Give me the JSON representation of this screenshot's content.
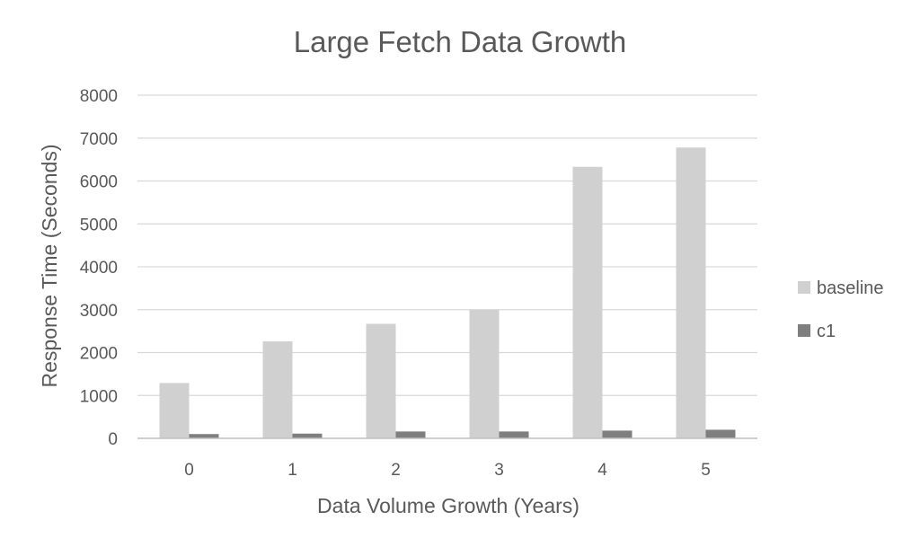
{
  "chart_data": {
    "type": "bar",
    "title": "Large Fetch Data Growth",
    "xlabel": "Data Volume Growth (Years)",
    "ylabel": "Response Time (Seconds)",
    "categories": [
      "0",
      "1",
      "2",
      "3",
      "4",
      "5"
    ],
    "series": [
      {
        "name": "baseline",
        "values": [
          1290,
          2260,
          2670,
          3000,
          6330,
          6780
        ],
        "color": "#d0d0d0"
      },
      {
        "name": "c1",
        "values": [
          100,
          110,
          160,
          160,
          180,
          200
        ],
        "color": "#7f7f7f"
      }
    ],
    "ylim": [
      0,
      8000
    ],
    "yticks": [
      "0",
      "1000",
      "2000",
      "3000",
      "4000",
      "5000",
      "6000",
      "7000",
      "8000"
    ],
    "grid": true,
    "legend_position": "right",
    "colors": {
      "gridline": "#d9d9d9",
      "axis_line": "#bfbfbf",
      "text": "#595959"
    }
  }
}
